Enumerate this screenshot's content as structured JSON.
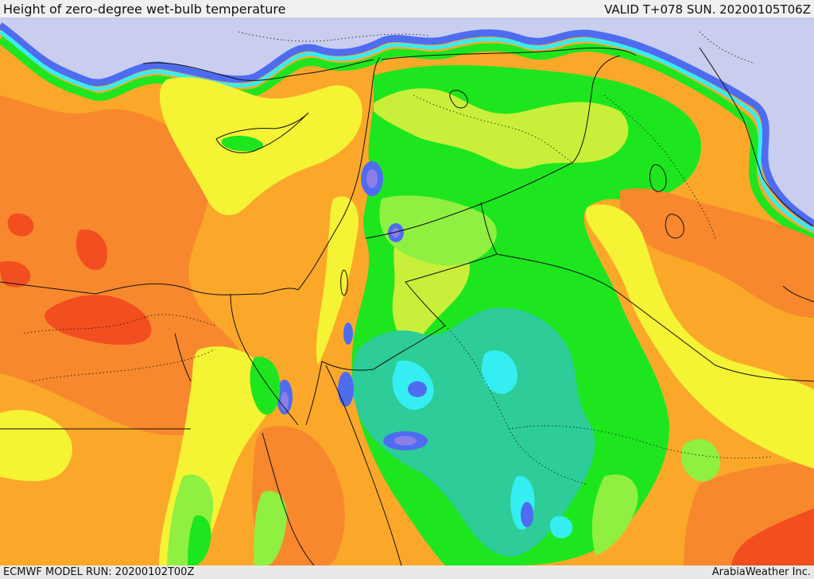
{
  "header": {
    "title": "Height of zero-degree wet-bulb temperature",
    "valid_time": "VALID T+078 SUN. 20200105T06Z"
  },
  "footer": {
    "model_run": "ECMWF MODEL RUN: 20200102T00Z",
    "credit": "ArabiaWeather Inc."
  },
  "map": {
    "field": "zero-degree wet-bulb height",
    "region": "Eastern Mediterranean, Egypt, Levant, northern Arabia",
    "colors": {
      "red": "#f24e20",
      "dark_orange": "#f7882d",
      "orange": "#fba82a",
      "yellow": "#f4f334",
      "yellow_green": "#c9ef3a",
      "light_green": "#8ff042",
      "green": "#1de61f",
      "teal": "#2dcc98",
      "cyan": "#35eef2",
      "blue": "#4f6cf0",
      "violet": "#8b7ee6",
      "lavender": "#c9cdee",
      "boundary": "#111111"
    }
  }
}
